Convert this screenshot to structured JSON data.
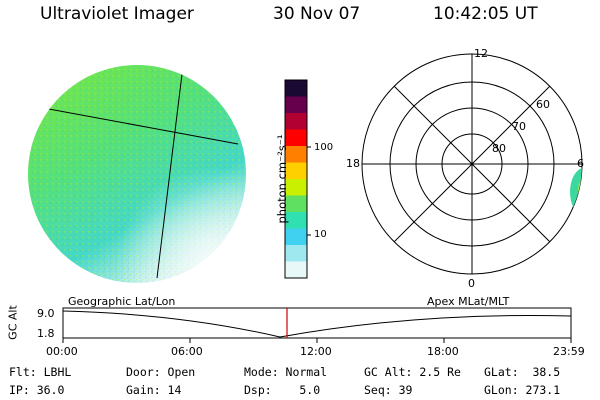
{
  "header": {
    "instrument": "Ultraviolet Imager",
    "date": "30 Nov 07",
    "time": "10:42:05 UT"
  },
  "colorbar": {
    "unit_label": "photon cm⁻²s⁻¹",
    "ticks": [
      "100",
      "10"
    ],
    "colors": [
      "#1a0a33",
      "#66004d",
      "#b30033",
      "#ff0000",
      "#ff8000",
      "#ffd000",
      "#c8f000",
      "#60e060",
      "#30e0b0",
      "#40d0f0",
      "#a0e8f0",
      "#e8f8f8"
    ]
  },
  "polar_plot": {
    "mlt_labels": {
      "top": "12",
      "left": "18",
      "right": "6",
      "bottom": "0"
    },
    "lat_labels": [
      "60",
      "70",
      "80"
    ]
  },
  "timeline": {
    "ylabel": "GC Alt",
    "y_max": "9.0",
    "y_min": "1.8",
    "left_title": "Geographic Lat/Lon",
    "right_title": "Apex MLat/MLT",
    "x_ticks": [
      "00:00",
      "06:00",
      "12:00",
      "18:00",
      "23:59"
    ]
  },
  "status": {
    "filter": "Flt: LBHL",
    "ip": "IP: 36.0",
    "door": "Door: Open",
    "gain": "Gain: 14",
    "mode": "Mode: Normal",
    "dsp": "Dsp:    5.0",
    "gc_alt": "GC Alt: 2.5 Re",
    "seq": "Seq: 39",
    "glat": "GLat:  38.5",
    "glon": "GLon: 273.1"
  }
}
